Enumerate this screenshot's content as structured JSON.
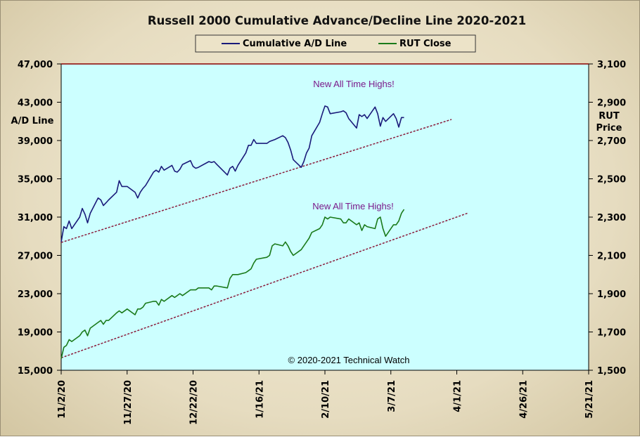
{
  "chart_data": {
    "type": "line",
    "title": "Russell 2000 Cumulative Advance/Decline Line 2020-2021",
    "ylabel_left": "A/D Line",
    "ylabel_right": "RUT Price",
    "ylim_left": [
      15000,
      47000
    ],
    "ylim_right": [
      1500,
      3100
    ],
    "yticks_left": [
      "15,000",
      "19,000",
      "23,000",
      "27,000",
      "31,000",
      "35,000",
      "39,000",
      "43,000",
      "47,000"
    ],
    "yticks_right": [
      "1,500",
      "1,700",
      "1,900",
      "2,100",
      "2,300",
      "2,500",
      "2,700",
      "2,900",
      "3,100"
    ],
    "xlim": [
      "2020-11-02",
      "2021-05-21"
    ],
    "xticks": [
      "11/2/20",
      "11/27/20",
      "12/22/20",
      "1/16/21",
      "2/10/21",
      "3/7/21",
      "4/1/21",
      "4/26/21",
      "5/21/21"
    ],
    "grid": false,
    "legend": "top-center",
    "copyright": "© 2020-2021  Technical Watch",
    "colors": {
      "ad_line": "#1a1a7a",
      "rut_close": "#1a7a1a",
      "trend": "#8a1a3a",
      "plot_bg": "#ccffff",
      "top_border": "#8b0000"
    },
    "series": [
      {
        "name": "Cumulative A/D Line",
        "axis": "left",
        "x": [
          "2020-11-02",
          "2020-11-03",
          "2020-11-04",
          "2020-11-05",
          "2020-11-06",
          "2020-11-09",
          "2020-11-10",
          "2020-11-11",
          "2020-11-12",
          "2020-11-13",
          "2020-11-16",
          "2020-11-17",
          "2020-11-18",
          "2020-11-19",
          "2020-11-20",
          "2020-11-23",
          "2020-11-24",
          "2020-11-25",
          "2020-11-27",
          "2020-11-30",
          "2020-12-01",
          "2020-12-02",
          "2020-12-03",
          "2020-12-04",
          "2020-12-07",
          "2020-12-08",
          "2020-12-09",
          "2020-12-10",
          "2020-12-11",
          "2020-12-14",
          "2020-12-15",
          "2020-12-16",
          "2020-12-17",
          "2020-12-18",
          "2020-12-21",
          "2020-12-22",
          "2020-12-23",
          "2020-12-24",
          "2020-12-28",
          "2020-12-29",
          "2020-12-30",
          "2020-12-31",
          "2021-01-04",
          "2021-01-05",
          "2021-01-06",
          "2021-01-07",
          "2021-01-08",
          "2021-01-11",
          "2021-01-12",
          "2021-01-13",
          "2021-01-14",
          "2021-01-15",
          "2021-01-19",
          "2021-01-20",
          "2021-01-21",
          "2021-01-22",
          "2021-01-25",
          "2021-01-26",
          "2021-01-27",
          "2021-01-28",
          "2021-01-29",
          "2021-02-01",
          "2021-02-02",
          "2021-02-03",
          "2021-02-04",
          "2021-02-05",
          "2021-02-08",
          "2021-02-09",
          "2021-02-10",
          "2021-02-11",
          "2021-02-12",
          "2021-02-16",
          "2021-02-17",
          "2021-02-18",
          "2021-02-19",
          "2021-02-22",
          "2021-02-23",
          "2021-02-24",
          "2021-02-25",
          "2021-02-26",
          "2021-03-01",
          "2021-03-02",
          "2021-03-03",
          "2021-03-04",
          "2021-03-05",
          "2021-03-08",
          "2021-03-09",
          "2021-03-10",
          "2021-03-11",
          "2021-03-12"
        ],
        "values": [
          28400,
          30000,
          29800,
          30600,
          29800,
          31000,
          31900,
          31300,
          30400,
          31400,
          33000,
          32800,
          32200,
          32500,
          32800,
          33600,
          34800,
          34200,
          34200,
          33600,
          33000,
          33600,
          34000,
          34300,
          35700,
          35900,
          35700,
          36300,
          35900,
          36400,
          35800,
          35700,
          36000,
          36500,
          36900,
          36300,
          36100,
          36200,
          36800,
          36700,
          36800,
          36500,
          35400,
          36100,
          36300,
          35800,
          36400,
          37700,
          38500,
          38500,
          39100,
          38700,
          38700,
          38900,
          39000,
          39100,
          39500,
          39300,
          38800,
          38000,
          37000,
          36200,
          36800,
          37700,
          38200,
          39500,
          40900,
          41800,
          42600,
          42500,
          41800,
          42000,
          42100,
          41900,
          41300,
          40300,
          41700,
          41500,
          41700,
          41300,
          42500,
          41800,
          40500,
          41400,
          41000,
          41800,
          41300,
          40400,
          41400,
          41400
        ]
      },
      {
        "name": "RUT Close",
        "axis": "right",
        "x": [
          "2020-11-02",
          "2020-11-03",
          "2020-11-04",
          "2020-11-05",
          "2020-11-06",
          "2020-11-09",
          "2020-11-10",
          "2020-11-11",
          "2020-11-12",
          "2020-11-13",
          "2020-11-16",
          "2020-11-17",
          "2020-11-18",
          "2020-11-19",
          "2020-11-20",
          "2020-11-23",
          "2020-11-24",
          "2020-11-25",
          "2020-11-27",
          "2020-11-30",
          "2020-12-01",
          "2020-12-02",
          "2020-12-03",
          "2020-12-04",
          "2020-12-07",
          "2020-12-08",
          "2020-12-09",
          "2020-12-10",
          "2020-12-11",
          "2020-12-14",
          "2020-12-15",
          "2020-12-16",
          "2020-12-17",
          "2020-12-18",
          "2020-12-21",
          "2020-12-22",
          "2020-12-23",
          "2020-12-24",
          "2020-12-28",
          "2020-12-29",
          "2020-12-30",
          "2020-12-31",
          "2021-01-04",
          "2021-01-05",
          "2021-01-06",
          "2021-01-07",
          "2021-01-08",
          "2021-01-11",
          "2021-01-12",
          "2021-01-13",
          "2021-01-14",
          "2021-01-15",
          "2021-01-19",
          "2021-01-20",
          "2021-01-21",
          "2021-01-22",
          "2021-01-25",
          "2021-01-26",
          "2021-01-27",
          "2021-01-28",
          "2021-01-29",
          "2021-02-01",
          "2021-02-02",
          "2021-02-03",
          "2021-02-04",
          "2021-02-05",
          "2021-02-08",
          "2021-02-09",
          "2021-02-10",
          "2021-02-11",
          "2021-02-12",
          "2021-02-16",
          "2021-02-17",
          "2021-02-18",
          "2021-02-19",
          "2021-02-22",
          "2021-02-23",
          "2021-02-24",
          "2021-02-25",
          "2021-02-26",
          "2021-03-01",
          "2021-03-02",
          "2021-03-03",
          "2021-03-04",
          "2021-03-05",
          "2021-03-08",
          "2021-03-09",
          "2021-03-10",
          "2021-03-11",
          "2021-03-12"
        ],
        "values": [
          1560,
          1620,
          1630,
          1660,
          1650,
          1680,
          1700,
          1710,
          1680,
          1720,
          1750,
          1760,
          1740,
          1760,
          1760,
          1800,
          1810,
          1800,
          1820,
          1790,
          1820,
          1820,
          1830,
          1850,
          1860,
          1860,
          1840,
          1870,
          1860,
          1890,
          1880,
          1890,
          1900,
          1890,
          1920,
          1920,
          1920,
          1930,
          1930,
          1920,
          1940,
          1940,
          1930,
          1980,
          2000,
          2000,
          2000,
          2010,
          2020,
          2030,
          2060,
          2080,
          2090,
          2100,
          2150,
          2160,
          2150,
          2170,
          2150,
          2120,
          2100,
          2130,
          2150,
          2170,
          2190,
          2220,
          2240,
          2260,
          2300,
          2290,
          2300,
          2290,
          2270,
          2270,
          2290,
          2260,
          2270,
          2230,
          2260,
          2250,
          2240,
          2290,
          2300,
          2240,
          2200,
          2260,
          2260,
          2280,
          2320,
          2340
        ]
      }
    ],
    "trendlines": [
      {
        "axis": "left",
        "x": [
          "2020-11-02",
          "2021-03-30"
        ],
        "values": [
          28350,
          41200
        ]
      },
      {
        "axis": "right",
        "x": [
          "2020-11-02",
          "2021-04-05"
        ],
        "values": [
          1565,
          2320
        ]
      }
    ],
    "annotations": [
      {
        "text": "New All Time Highs!",
        "series": "Cumulative A/D Line"
      },
      {
        "text": "New All Time Highs!",
        "series": "RUT Close"
      }
    ]
  }
}
